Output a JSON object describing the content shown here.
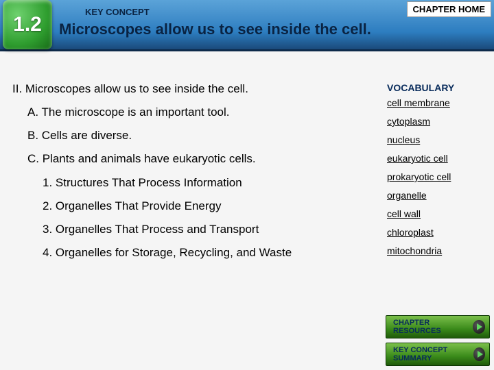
{
  "header": {
    "section_number": "1.2",
    "label": "KEY CONCEPT",
    "title": "Microscopes allow us to see inside the cell.",
    "chapter_home": "CHAPTER HOME"
  },
  "outline": {
    "main": "II. Microscopes allow us to see inside the cell.",
    "a": "A. The microscope is an important tool.",
    "b": "B. Cells are diverse.",
    "c": "C. Plants and animals have eukaryotic cells.",
    "c1": "1. Structures That Process Information",
    "c2": "2. Organelles That Provide Energy",
    "c3": "3. Organelles That Process and Transport",
    "c4": "4. Organelles for Storage, Recycling, and Waste"
  },
  "vocab": {
    "heading": "VOCABULARY",
    "items": {
      "0": "cell membrane",
      "1": "cytoplasm",
      "2": "nucleus",
      "3": "eukaryotic cell",
      "4": "prokaryotic cell",
      "5": "organelle",
      "6": "cell wall",
      "7": "chloroplast",
      "8": "mitochondria"
    }
  },
  "buttons": {
    "resources": "CHAPTER RESOURCES",
    "summary": "KEY CONCEPT SUMMARY"
  },
  "colors": {
    "header_dark": "#0a2342",
    "badge_green": "#2f9e2f",
    "button_green": "#3a8a1a",
    "vocab_link": "#000000"
  }
}
